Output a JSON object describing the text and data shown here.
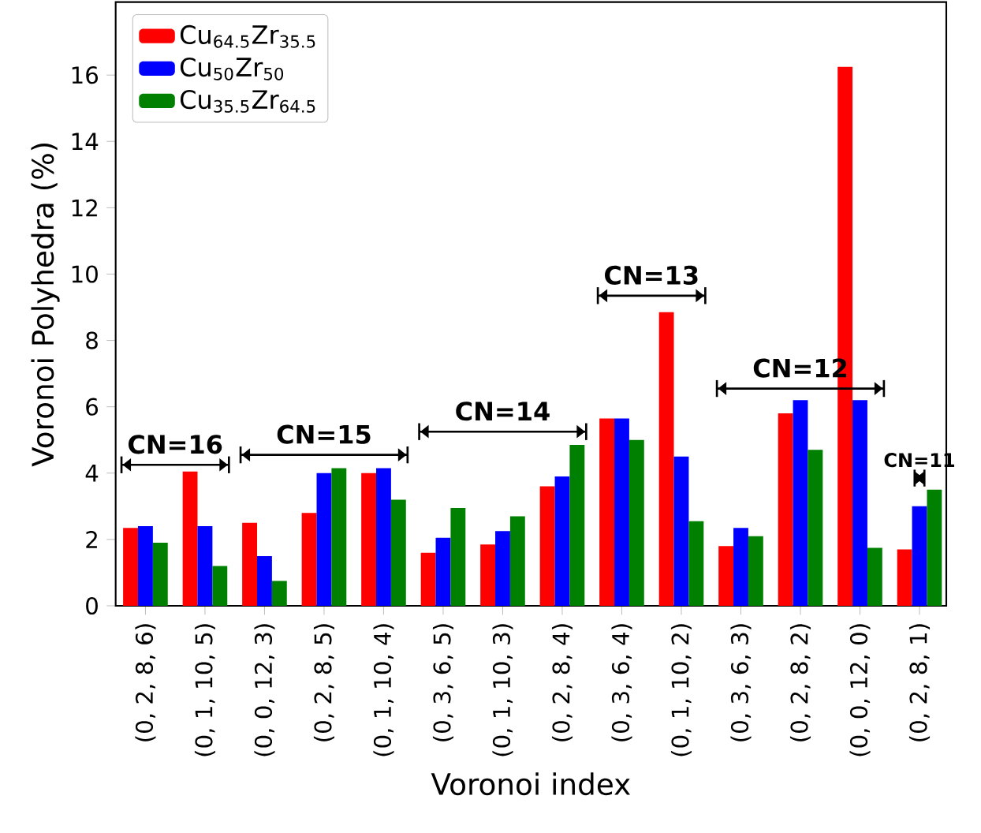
{
  "chart_data": {
    "type": "bar",
    "xlabel": "Voronoi index",
    "ylabel": "Voronoi Polyhedra (%)",
    "categories": [
      "(0, 2, 8, 6)",
      "(0, 1, 10, 5)",
      "(0, 0, 12, 3)",
      "(0, 2, 8, 5)",
      "(0, 1, 10, 4)",
      "(0, 3, 6, 5)",
      "(0, 1, 10, 3)",
      "(0, 2, 8, 4)",
      "(0, 3, 6, 4)",
      "(0, 1, 10, 2)",
      "(0, 3, 6, 3)",
      "(0, 2, 8, 2)",
      "(0, 0, 12, 0)",
      "(0, 2, 8, 1)"
    ],
    "series": [
      {
        "name": "Cu$_{64.5}$Zr$_{35.5}$",
        "color": "#ff0000",
        "values": [
          2.35,
          4.05,
          2.5,
          2.8,
          4.0,
          1.6,
          1.85,
          3.6,
          5.65,
          8.85,
          1.8,
          5.8,
          16.25,
          1.7
        ]
      },
      {
        "name": "Cu$_{50}$Zr$_{50}$",
        "color": "#0000ff",
        "values": [
          2.4,
          2.4,
          1.5,
          4.0,
          4.15,
          2.05,
          2.25,
          3.9,
          5.65,
          4.5,
          2.35,
          6.2,
          6.2,
          3.0
        ]
      },
      {
        "name": "Cu$_{35.5}$Zr$_{64.5}$",
        "color": "#008000",
        "values": [
          1.9,
          1.2,
          0.75,
          4.15,
          3.2,
          2.95,
          2.7,
          4.85,
          5.0,
          2.55,
          2.1,
          4.7,
          1.75,
          3.5
        ]
      }
    ],
    "ylim": [
      0,
      18.2
    ],
    "yticks": [
      0,
      2,
      4,
      6,
      8,
      10,
      12,
      14,
      16
    ],
    "legend": "top left",
    "grid": false,
    "annotations": [
      "CN=16",
      "CN=15",
      "CN=14",
      "CN=13",
      "CN=12",
      "CN=11"
    ]
  }
}
